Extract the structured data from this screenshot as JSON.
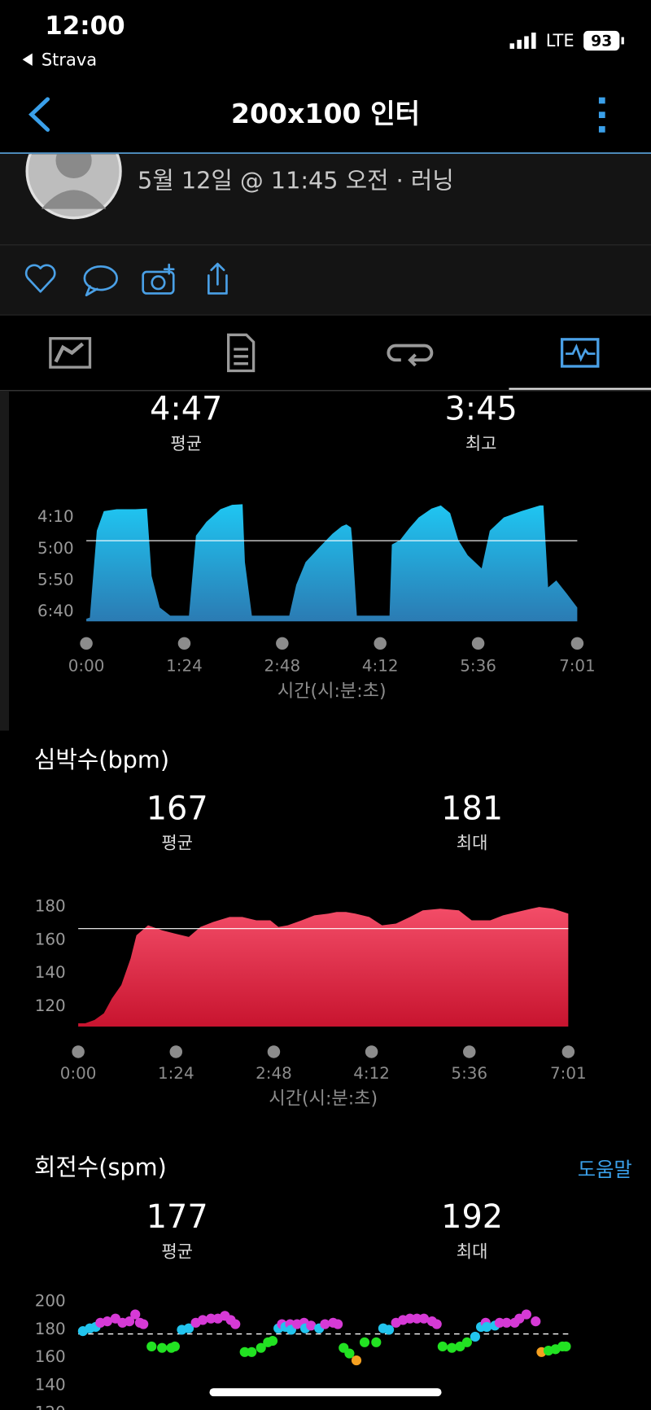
{
  "status_bar": {
    "time": "12:00",
    "back_app": "Strava",
    "network": "LTE",
    "battery": "93"
  },
  "header": {
    "title": "200x100 인터"
  },
  "activity": {
    "subtitle": "5월 12일 @ 11:45 오전 · 러닝"
  },
  "help_link": "도움말",
  "chart_data": [
    {
      "type": "area",
      "x_label": "시간(시:분:초)",
      "colors": [
        "#1fc6f2",
        "#2b7bb3"
      ],
      "stats": [
        {
          "name": "평균",
          "value": 287,
          "label": "4:47"
        },
        {
          "name": "최고",
          "value": 225,
          "label": "3:45"
        }
      ],
      "xlim": [
        0,
        421
      ],
      "ylim": [
        415,
        225
      ],
      "xticks": [
        {
          "value": 0,
          "label": "0:00"
        },
        {
          "value": 84,
          "label": "1:24"
        },
        {
          "value": 168,
          "label": "2:48"
        },
        {
          "value": 252,
          "label": "4:12"
        },
        {
          "value": 336,
          "label": "5:36"
        },
        {
          "value": 421,
          "label": "7:01"
        }
      ],
      "yticks": [
        {
          "value": 250,
          "label": "4:10"
        },
        {
          "value": 300,
          "label": "5:00"
        },
        {
          "value": 350,
          "label": "5:50"
        },
        {
          "value": 400,
          "label": "6:40"
        }
      ],
      "x": [
        0,
        3,
        9,
        15,
        26,
        42,
        52,
        56,
        63,
        72,
        88,
        94,
        103,
        115,
        125,
        134,
        136,
        142,
        157,
        174,
        180,
        188,
        200,
        211,
        219,
        223,
        227,
        228,
        232,
        242,
        260,
        262,
        269,
        277,
        285,
        296,
        304,
        312,
        319,
        327,
        339,
        346,
        358,
        373,
        389,
        392,
        396,
        403,
        412,
        421
      ],
      "values": [
        411,
        409,
        271,
        240,
        237,
        237,
        236,
        343,
        393,
        406,
        406,
        279,
        257,
        237,
        230,
        229,
        321,
        406,
        406,
        406,
        357,
        321,
        297,
        276,
        264,
        261,
        266,
        286,
        406,
        406,
        406,
        293,
        286,
        267,
        250,
        236,
        231,
        243,
        286,
        310,
        331,
        271,
        250,
        240,
        231,
        231,
        361,
        350,
        371,
        393
      ]
    },
    {
      "type": "area",
      "title": "심박수(bpm)",
      "x_label": "시간(시:분:초)",
      "colors": [
        "#f34d68",
        "#c8142f"
      ],
      "stats": [
        {
          "name": "평균",
          "value": 167
        },
        {
          "name": "최대",
          "value": 181
        }
      ],
      "xlim": [
        0,
        421
      ],
      "ylim": [
        108,
        186
      ],
      "xticks": [
        {
          "value": 0,
          "label": "0:00"
        },
        {
          "value": 84,
          "label": "1:24"
        },
        {
          "value": 168,
          "label": "2:48"
        },
        {
          "value": 252,
          "label": "4:12"
        },
        {
          "value": 336,
          "label": "5:36"
        },
        {
          "value": 421,
          "label": "7:01"
        }
      ],
      "yticks": [
        120,
        140,
        160,
        180
      ],
      "x": [
        0,
        6,
        14,
        22,
        29,
        37,
        45,
        50,
        60,
        72,
        83,
        95,
        105,
        116,
        130,
        141,
        153,
        165,
        172,
        180,
        192,
        203,
        215,
        222,
        230,
        238,
        250,
        261,
        273,
        285,
        296,
        311,
        327,
        338,
        354,
        365,
        377,
        389,
        396,
        408,
        421
      ],
      "values": [
        110,
        110,
        112,
        116,
        125,
        133,
        149,
        163,
        169,
        166,
        164,
        162,
        168,
        171,
        174,
        174,
        172,
        172,
        168,
        169,
        172,
        175,
        176,
        177,
        177,
        176,
        174,
        169,
        170,
        174,
        178,
        179,
        178,
        172,
        172,
        175,
        177,
        179,
        180,
        179,
        176
      ]
    },
    {
      "type": "scatter",
      "title": "회전수(spm)",
      "stats": [
        {
          "name": "평균",
          "value": 177
        },
        {
          "name": "최대",
          "value": 192
        }
      ],
      "xlim": [
        0,
        421
      ],
      "ylim": [
        120,
        200
      ],
      "yticks": [
        120,
        140,
        160,
        180,
        200
      ],
      "x": [
        4,
        10,
        15,
        19,
        25,
        32,
        38,
        44,
        49,
        53,
        56,
        63,
        72,
        80,
        83,
        89,
        95,
        101,
        107,
        114,
        120,
        126,
        131,
        135,
        143,
        149,
        157,
        163,
        167,
        172,
        175,
        178,
        182,
        183,
        188,
        194,
        195,
        200,
        207,
        212,
        219,
        223,
        228,
        233,
        239,
        246,
        256,
        262,
        267,
        273,
        279,
        285,
        291,
        297,
        304,
        308,
        313,
        321,
        328,
        334,
        341,
        346,
        350,
        351,
        358,
        362,
        368,
        375,
        379,
        385,
        393,
        398,
        404,
        410,
        416,
        419
      ],
      "values": [
        179,
        181,
        182,
        185,
        186,
        188,
        185,
        186,
        191,
        185,
        184,
        168,
        167,
        167,
        168,
        180,
        181,
        185,
        187,
        188,
        188,
        190,
        187,
        184,
        164,
        164,
        167,
        171,
        172,
        181,
        184,
        182,
        184,
        180,
        184,
        185,
        181,
        183,
        181,
        184,
        185,
        184,
        167,
        163,
        158,
        171,
        171,
        181,
        180,
        185,
        187,
        188,
        188,
        188,
        186,
        184,
        168,
        167,
        168,
        171,
        175,
        182,
        185,
        182,
        183,
        185,
        185,
        185,
        188,
        191,
        186,
        164,
        165,
        166,
        168,
        168
      ],
      "colors": [
        "#22c4ee",
        "#22c4ee",
        "#22c4ee",
        "#d63ad6",
        "#d63ad6",
        "#d63ad6",
        "#d63ad6",
        "#d63ad6",
        "#d63ad6",
        "#d63ad6",
        "#d63ad6",
        "#22e222",
        "#22e222",
        "#22e222",
        "#22e222",
        "#22c4ee",
        "#22c4ee",
        "#d63ad6",
        "#d63ad6",
        "#d63ad6",
        "#d63ad6",
        "#d63ad6",
        "#d63ad6",
        "#d63ad6",
        "#22e222",
        "#22e222",
        "#22e222",
        "#22e222",
        "#22e222",
        "#22c4ee",
        "#d63ad6",
        "#22c4ee",
        "#d63ad6",
        "#22c4ee",
        "#d63ad6",
        "#d63ad6",
        "#22c4ee",
        "#d63ad6",
        "#22c4ee",
        "#d63ad6",
        "#d63ad6",
        "#d63ad6",
        "#22e222",
        "#22e222",
        "#f5a020",
        "#22e222",
        "#22e222",
        "#22c4ee",
        "#22c4ee",
        "#d63ad6",
        "#d63ad6",
        "#d63ad6",
        "#d63ad6",
        "#d63ad6",
        "#d63ad6",
        "#d63ad6",
        "#22e222",
        "#22e222",
        "#22e222",
        "#22e222",
        "#22c4ee",
        "#22c4ee",
        "#d63ad6",
        "#22c4ee",
        "#22c4ee",
        "#d63ad6",
        "#d63ad6",
        "#d63ad6",
        "#d63ad6",
        "#d63ad6",
        "#d63ad6",
        "#f5a020",
        "#22e222",
        "#22e222",
        "#22e222",
        "#22e222"
      ]
    }
  ]
}
